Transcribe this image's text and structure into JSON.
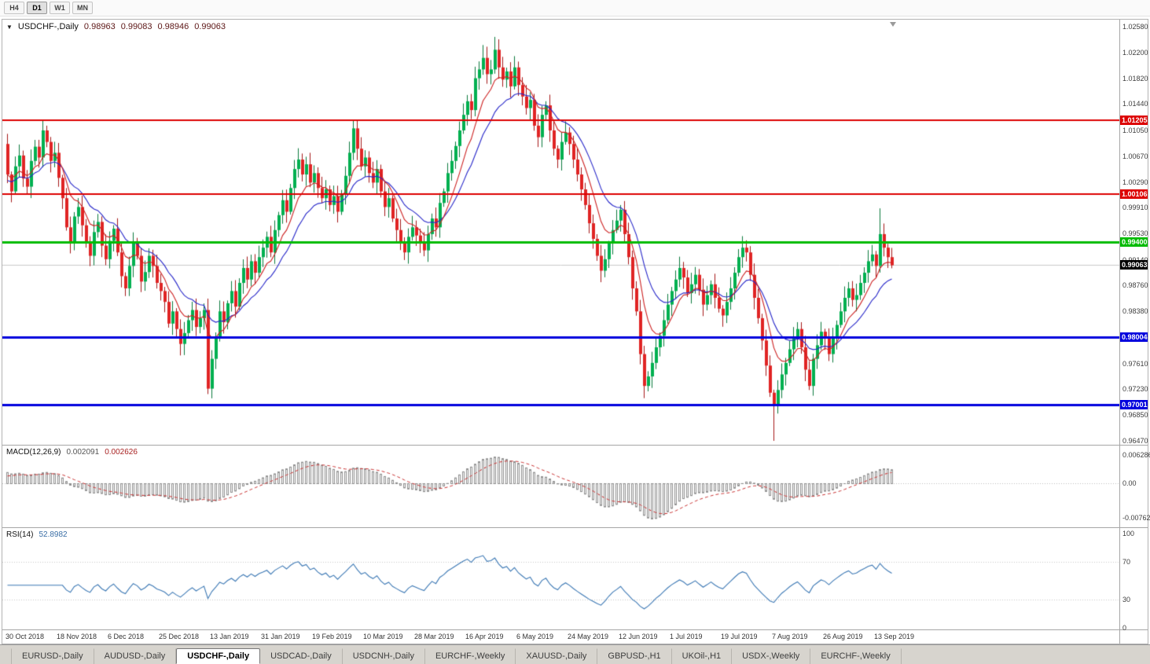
{
  "timeframe_toolbar": {
    "buttons": [
      "H4",
      "D1",
      "W1",
      "MN"
    ],
    "active": "D1"
  },
  "chart_window": {
    "title": {
      "symbol": "USDCHF-,Daily",
      "open": "0.98963",
      "high": "0.99083",
      "low": "0.98946",
      "close": "0.99063"
    },
    "range": {
      "top": 1.0258,
      "bottom": 0.9647
    },
    "price_axis": [
      "1.02580",
      "1.02200",
      "1.01820",
      "1.01440",
      "1.01050",
      "1.00670",
      "1.00290",
      "0.99910",
      "0.99530",
      "0.99140",
      "0.98760",
      "0.98380",
      "0.97610",
      "0.97230",
      "0.96850",
      "0.96470"
    ],
    "levels": [
      {
        "label": "1.01205",
        "color": "#dd0000",
        "width": 2
      },
      {
        "label": "1.00106",
        "color": "#dd0000",
        "width": 2
      },
      {
        "label": "0.99400",
        "color": "#00bb00",
        "width": 3
      },
      {
        "label": "0.98004",
        "color": "#0000dd",
        "width": 3
      },
      {
        "label": "0.97001",
        "color": "#0000dd",
        "width": 3
      }
    ],
    "current_price": {
      "label": "0.99063",
      "color": "#000000"
    }
  },
  "macd": {
    "name": "MACD(12,26,9)",
    "value_main": "0.002091",
    "value_signal": "0.002626",
    "axis": [
      "0.006286",
      "0.00",
      "-0.00762"
    ]
  },
  "rsi": {
    "name": "RSI(14)",
    "value": "52.8982",
    "axis": [
      "100",
      "70",
      "30",
      "0"
    ],
    "levels": [
      70,
      30
    ]
  },
  "time_axis": [
    {
      "label": "30 Oct 2018",
      "bar": 0
    },
    {
      "label": "18 Nov 2018",
      "bar": 13
    },
    {
      "label": "6 Dec 2018",
      "bar": 26
    },
    {
      "label": "25 Dec 2018",
      "bar": 39
    },
    {
      "label": "13 Jan 2019",
      "bar": 52
    },
    {
      "label": "31 Jan 2019",
      "bar": 65
    },
    {
      "label": "19 Feb 2019",
      "bar": 78
    },
    {
      "label": "10 Mar 2019",
      "bar": 91
    },
    {
      "label": "28 Mar 2019",
      "bar": 104
    },
    {
      "label": "16 Apr 2019",
      "bar": 117
    },
    {
      "label": "6 May 2019",
      "bar": 130
    },
    {
      "label": "24 May 2019",
      "bar": 143
    },
    {
      "label": "12 Jun 2019",
      "bar": 156
    },
    {
      "label": "1 Jul 2019",
      "bar": 169
    },
    {
      "label": "19 Jul 2019",
      "bar": 182
    },
    {
      "label": "7 Aug 2019",
      "bar": 195
    },
    {
      "label": "26 Aug 2019",
      "bar": 208
    },
    {
      "label": "13 Sep 2019",
      "bar": 221
    }
  ],
  "tabs": {
    "items": [
      "EURUSD-,Daily",
      "AUDUSD-,Daily",
      "USDCHF-,Daily",
      "USDCAD-,Daily",
      "USDCNH-,Daily",
      "EURCHF-,Weekly",
      "XAUUSD-,Daily",
      "GBPUSD-,H1",
      "UKOil-,H1",
      "USDX-,Weekly",
      "EURCHF-,Weekly"
    ],
    "active_index": 2
  },
  "chart_data": {
    "type": "candlestick",
    "symbol": "USDCHF",
    "timeframe": "Daily",
    "ma_periods": {
      "fast_red": 8,
      "slow_blue": 16
    },
    "macd_params": [
      12,
      26,
      9
    ],
    "rsi_period": 14,
    "first_open": 1.0085,
    "closes": [
      1.004,
      1.0015,
      1.0052,
      1.0068,
      1.0034,
      1.0022,
      1.006,
      1.0081,
      1.0065,
      1.0105,
      1.0088,
      1.006,
      1.0072,
      1.0035,
      1.0005,
      0.9962,
      0.994,
      0.9978,
      0.9992,
      0.9965,
      0.9938,
      0.992,
      0.9955,
      0.997,
      0.9935,
      0.9915,
      0.9942,
      0.996,
      0.9925,
      0.989,
      0.9872,
      0.9905,
      0.9938,
      0.992,
      0.9882,
      0.9896,
      0.992,
      0.9905,
      0.988,
      0.9868,
      0.9852,
      0.982,
      0.9838,
      0.9812,
      0.979,
      0.9806,
      0.9825,
      0.984,
      0.9815,
      0.9828,
      0.984,
      0.9724,
      0.9768,
      0.98,
      0.9838,
      0.9822,
      0.985,
      0.9868,
      0.9845,
      0.988,
      0.9902,
      0.9885,
      0.9912,
      0.9895,
      0.9918,
      0.9932,
      0.9948,
      0.9925,
      0.9958,
      0.998,
      1.0002,
      0.9985,
      1.002,
      1.0048,
      1.0062,
      1.004,
      1.0055,
      1.0028,
      1.0042,
      1.002,
      1.0005,
      1.0018,
      0.9995,
      1.0008,
      0.9985,
      1.0012,
      1.0038,
      1.0072,
      1.0108,
      1.0078,
      1.0052,
      1.0065,
      1.0042,
      1.0028,
      1.0048,
      1.0015,
      0.9992,
      1.0005,
      0.9975,
      0.9958,
      0.994,
      0.9925,
      0.9948,
      0.9962,
      0.995,
      0.9938,
      0.9928,
      0.9952,
      0.9975,
      0.9962,
      0.9998,
      1.0015,
      1.0042,
      1.006,
      1.0082,
      1.0105,
      1.0128,
      1.0148,
      1.0135,
      1.0182,
      1.0195,
      1.0212,
      1.0188,
      1.0195,
      1.0224,
      1.0198,
      1.018,
      1.0192,
      1.017,
      1.0198,
      1.0172,
      1.0155,
      1.0138,
      1.015,
      1.0112,
      1.0095,
      1.0128,
      1.0142,
      1.0105,
      1.0078,
      1.0062,
      1.0088,
      1.0102,
      1.0085,
      1.0062,
      1.004,
      1.0018,
      0.9995,
      0.9968,
      0.9945,
      0.992,
      0.9898,
      0.9915,
      0.9938,
      0.9958,
      0.9972,
      0.9988,
      0.9952,
      0.9918,
      0.9872,
      0.9838,
      0.9775,
      0.9728,
      0.9742,
      0.9762,
      0.9785,
      0.9802,
      0.9825,
      0.9848,
      0.9868,
      0.9885,
      0.9902,
      0.9888,
      0.9865,
      0.9878,
      0.9892,
      0.987,
      0.9848,
      0.9862,
      0.9878,
      0.9858,
      0.9842,
      0.9832,
      0.9852,
      0.9872,
      0.9895,
      0.9918,
      0.9932,
      0.9925,
      0.9892,
      0.9858,
      0.9828,
      0.9795,
      0.9758,
      0.9718,
      0.9698,
      0.9722,
      0.9745,
      0.9762,
      0.9782,
      0.9798,
      0.9812,
      0.9785,
      0.9752,
      0.9728,
      0.9768,
      0.9788,
      0.9808,
      0.9798,
      0.9775,
      0.9798,
      0.9818,
      0.9838,
      0.9858,
      0.9872,
      0.9855,
      0.9862,
      0.988,
      0.9895,
      0.9912,
      0.9922,
      0.9905,
      0.9952,
      0.9932,
      0.9918,
      0.9906
    ],
    "wick_overrides": {
      "9": {
        "high": 1.012
      },
      "10": {
        "high": 1.0112
      },
      "44": {
        "low": 0.9773
      },
      "51": {
        "low": 0.9716
      },
      "88": {
        "high": 1.012
      },
      "121": {
        "high": 1.0231
      },
      "124": {
        "high": 1.0243
      },
      "162": {
        "low": 0.971
      },
      "195": {
        "low": 0.9647
      },
      "204": {
        "low": 0.9722
      },
      "222": {
        "high": 0.999
      }
    }
  }
}
